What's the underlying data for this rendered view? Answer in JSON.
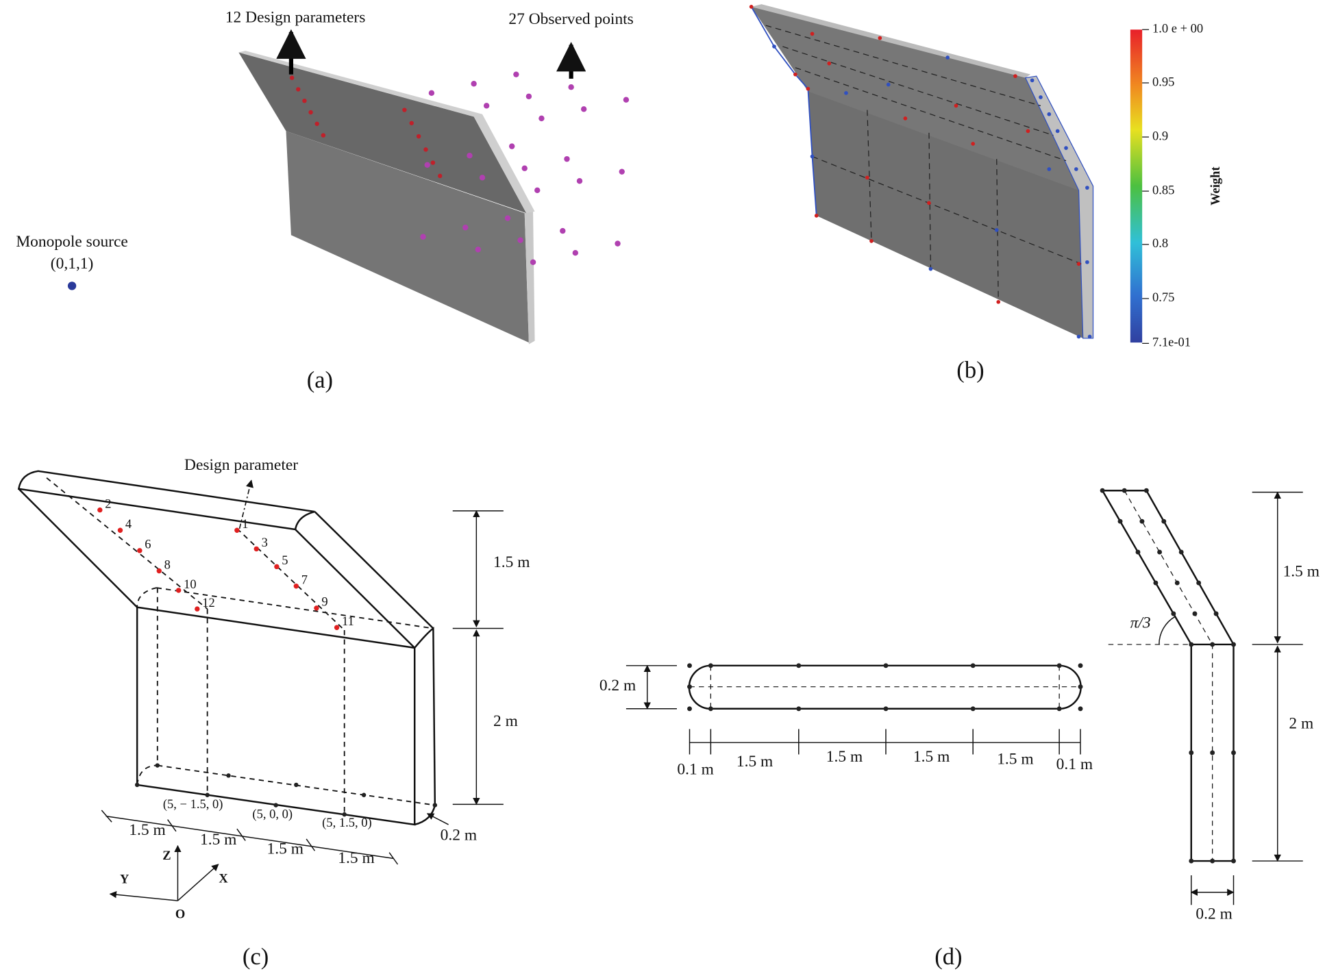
{
  "panel_a": {
    "label": "(a)",
    "design_parameters": "12 Design parameters",
    "observed_points": "27 Observed points",
    "source": "Monopole source",
    "source_coords": "(0,1,1)"
  },
  "panel_b": {
    "label": "(b)",
    "colorbar": {
      "title": "Weight",
      "ticks": [
        "1.0 e + 00",
        "0.95",
        "0.9",
        "0.85",
        "0.8",
        "0.75",
        "7.1e-01"
      ]
    }
  },
  "panel_c": {
    "label": "(c)",
    "design_parameter": "Design parameter",
    "parameter_numbers": [
      "1",
      "2",
      "3",
      "4",
      "5",
      "6",
      "7",
      "8",
      "9",
      "10",
      "11",
      "12"
    ],
    "dimensions": [
      "1.5 m",
      "2 m",
      "1.5 m",
      "1.5 m",
      "1.5 m",
      "1.5 m",
      "0.2 m"
    ],
    "coordinates": [
      "(5, − 1.5, 0)",
      "(5, 0, 0)",
      "(5, 1.5, 0)"
    ],
    "axes": {
      "z": "Z",
      "y": "Y",
      "x": "X",
      "origin": "O"
    }
  },
  "panel_d": {
    "label": "(d)",
    "top_view_dimensions": [
      "0.2 m",
      "0.1 m",
      "1.5 m",
      "1.5 m",
      "1.5 m",
      "1.5 m",
      "0.1 m"
    ],
    "side_view_dimensions": [
      "1.5 m",
      "2 m",
      "0.2 m"
    ],
    "angle": "π/3"
  }
}
